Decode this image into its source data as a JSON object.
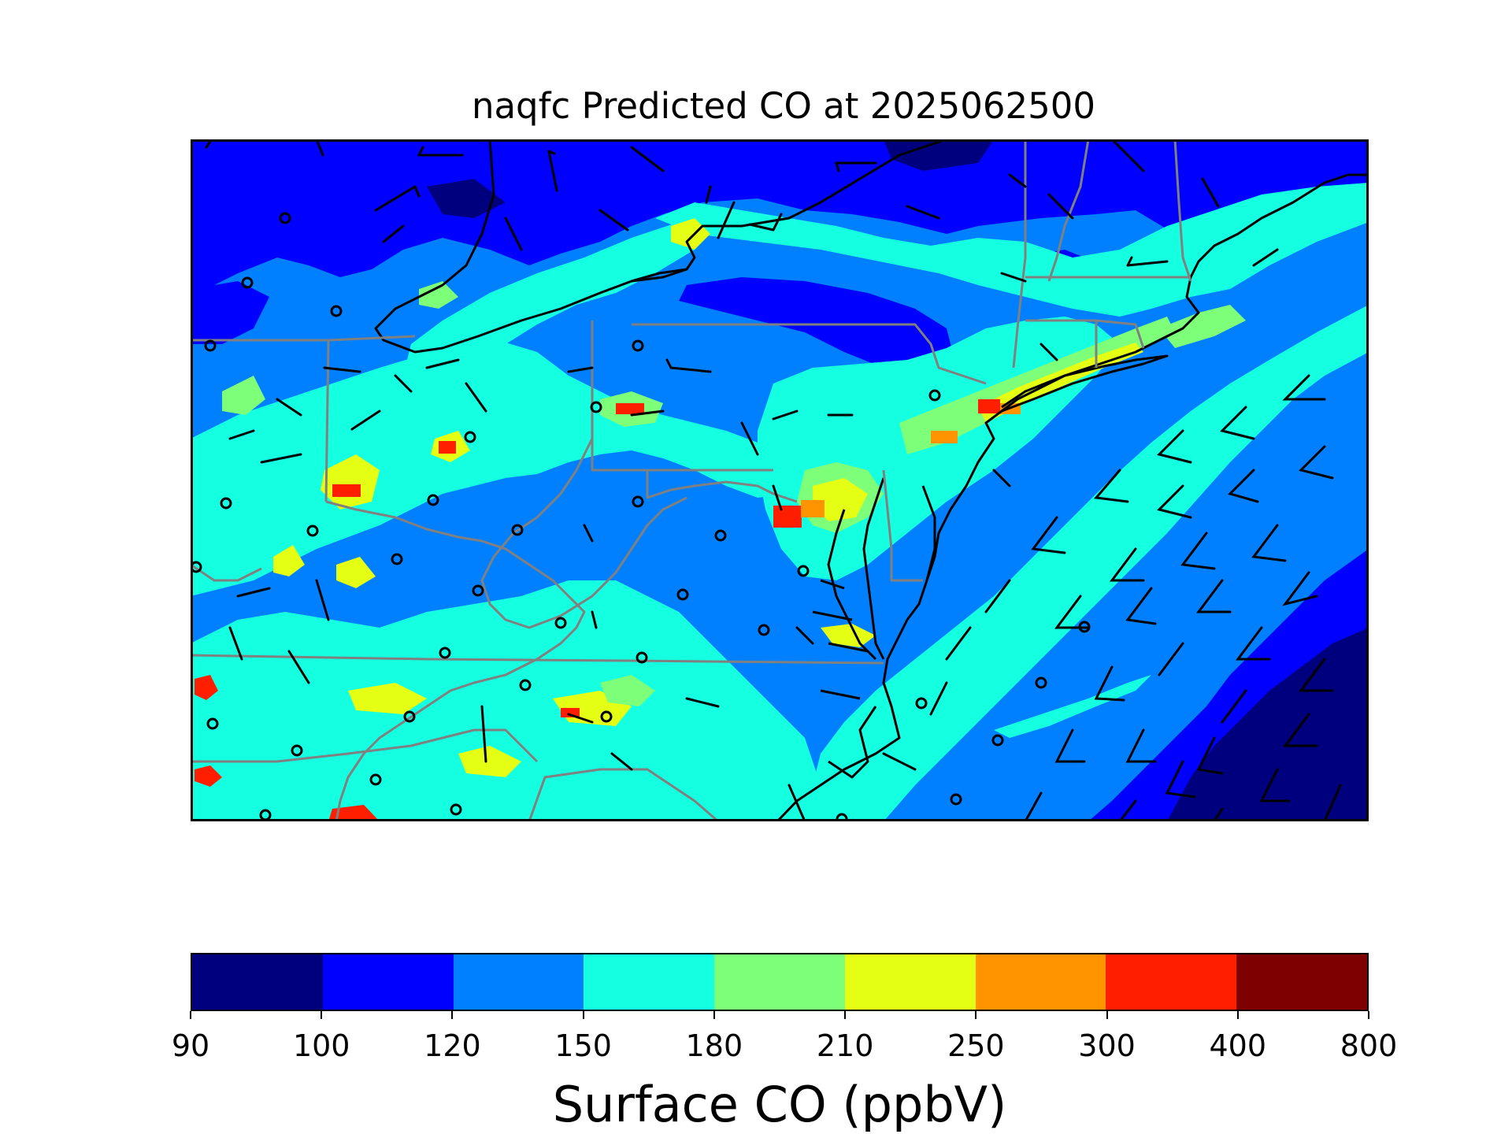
{
  "title": "naqfc Predicted CO at 2025062500",
  "colorbar": {
    "label": "Surface CO (ppbV)",
    "ticks": [
      "90",
      "100",
      "120",
      "150",
      "180",
      "210",
      "250",
      "300",
      "400",
      "800"
    ],
    "colors": [
      "#00007f",
      "#0000ff",
      "#0080ff",
      "#15ffe1",
      "#7dff7a",
      "#e4ff13",
      "#ff9400",
      "#ff1e00",
      "#7f0000"
    ]
  },
  "map": {
    "ocean_bands": [
      {
        "band": "120-150",
        "color": "#0080ff"
      },
      {
        "band": "100-120",
        "color": "#0000ff"
      },
      {
        "band": "90-100",
        "color": "#00007f"
      }
    ],
    "coastline_color": "#000000",
    "state_border_color": "#808080",
    "wind_symbols": "barb-and-calm-circle"
  }
}
